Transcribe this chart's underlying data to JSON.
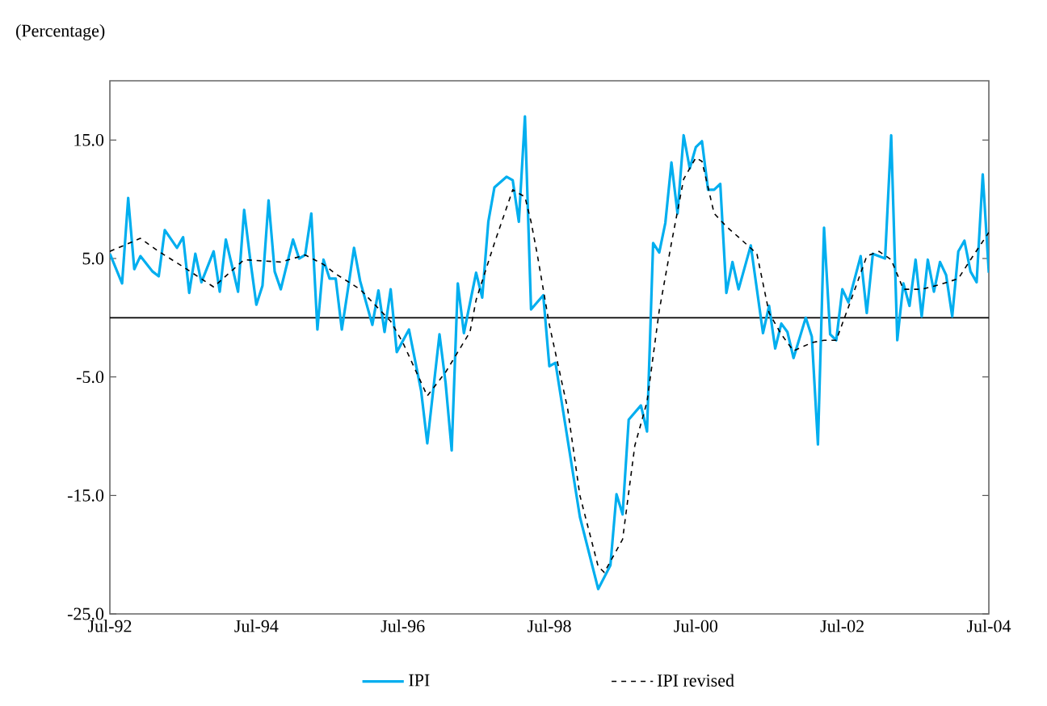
{
  "chart_data": {
    "type": "line",
    "ylabel": "(Percentage)",
    "xlim": [
      "1992-07",
      "2004-07"
    ],
    "xticks": [
      {
        "value": "1992-07",
        "label": "Jul-92"
      },
      {
        "value": "1994-07",
        "label": "Jul-94"
      },
      {
        "value": "1996-07",
        "label": "Jul-96"
      },
      {
        "value": "1998-07",
        "label": "Jul-98"
      },
      {
        "value": "2000-07",
        "label": "Jul-00"
      },
      {
        "value": "2002-07",
        "label": "Jul-02"
      },
      {
        "value": "2004-07",
        "label": "Jul-04"
      }
    ],
    "ylim": [
      -25,
      20
    ],
    "yticks": [
      {
        "value": -25,
        "label": "-25.0"
      },
      {
        "value": -15,
        "label": "-15.0"
      },
      {
        "value": -5,
        "label": "-5.0"
      },
      {
        "value": 5,
        "label": "5.0"
      },
      {
        "value": 15,
        "label": "15.0"
      }
    ],
    "ref_lines": [
      {
        "axis": "y",
        "value": 0,
        "color": "#000000"
      }
    ],
    "grid": false,
    "legend": "bottom",
    "series": [
      {
        "name": "IPI",
        "color": "#00aeef",
        "line_style": "solid",
        "x": [
          "1992-07",
          "1992-09",
          "1992-10",
          "1992-11",
          "1992-12",
          "1993-02",
          "1993-03",
          "1993-04",
          "1993-06",
          "1993-07",
          "1993-08",
          "1993-09",
          "1993-10",
          "1993-12",
          "1994-01",
          "1994-02",
          "1994-04",
          "1994-05",
          "1994-06",
          "1994-07",
          "1994-08",
          "1994-09",
          "1994-10",
          "1994-11",
          "1995-01",
          "1995-02",
          "1995-03",
          "1995-04",
          "1995-05",
          "1995-06",
          "1995-07",
          "1995-08",
          "1995-09",
          "1995-10",
          "1995-11",
          "1995-12",
          "1996-02",
          "1996-03",
          "1996-04",
          "1996-05",
          "1996-06",
          "1996-08",
          "1996-10",
          "1996-11",
          "1997-01",
          "1997-02",
          "1997-03",
          "1997-04",
          "1997-05",
          "1997-07",
          "1997-08",
          "1997-09",
          "1997-10",
          "1997-12",
          "1998-01",
          "1998-02",
          "1998-03",
          "1998-04",
          "1998-06",
          "1998-07",
          "1998-08",
          "1998-12",
          "1999-03",
          "1999-05",
          "1999-06",
          "1999-07",
          "1999-08",
          "1999-10",
          "1999-11",
          "1999-12",
          "2000-01",
          "2000-02",
          "2000-03",
          "2000-04",
          "2000-05",
          "2000-06",
          "2000-07",
          "2000-08",
          "2000-09",
          "2000-10",
          "2000-11",
          "2000-12",
          "2001-01",
          "2001-02",
          "2001-04",
          "2001-06",
          "2001-07",
          "2001-08",
          "2001-09",
          "2001-10",
          "2001-11",
          "2002-01",
          "2002-02",
          "2002-03",
          "2002-04",
          "2002-05",
          "2002-06",
          "2002-07",
          "2002-08",
          "2002-10",
          "2002-11",
          "2002-12",
          "2003-02",
          "2003-03",
          "2003-04",
          "2003-05",
          "2003-06",
          "2003-07",
          "2003-08",
          "2003-09",
          "2003-10",
          "2003-11",
          "2003-12",
          "2004-01",
          "2004-02",
          "2004-03",
          "2004-04",
          "2004-05",
          "2004-06",
          "2004-07"
        ],
        "values": [
          5.4,
          2.9,
          10.1,
          4.1,
          5.2,
          3.9,
          3.5,
          7.4,
          5.9,
          6.8,
          2.1,
          5.4,
          3.0,
          5.6,
          2.2,
          6.6,
          2.2,
          9.1,
          4.9,
          1.1,
          2.7,
          9.9,
          3.9,
          2.4,
          6.6,
          5.0,
          5.3,
          8.8,
          -1.0,
          4.9,
          3.3,
          3.3,
          -1.0,
          2.4,
          5.9,
          3.1,
          -0.6,
          2.3,
          -1.2,
          2.4,
          -2.9,
          -1.0,
          -6.2,
          -10.6,
          -1.4,
          -5.5,
          -11.2,
          2.9,
          -1.3,
          3.8,
          1.7,
          8.1,
          11.0,
          11.9,
          11.6,
          8.1,
          17.0,
          0.7,
          1.9,
          -4.1,
          -3.8,
          -16.8,
          -22.9,
          -20.9,
          -14.9,
          -16.6,
          -8.6,
          -7.4,
          -9.6,
          6.3,
          5.5,
          8.0,
          13.1,
          8.8,
          15.4,
          12.6,
          14.4,
          14.9,
          10.8,
          10.8,
          11.3,
          2.1,
          4.7,
          2.4,
          6.1,
          -1.3,
          1.0,
          -2.6,
          -0.5,
          -1.2,
          -3.4,
          0.0,
          -1.6,
          -10.7,
          7.6,
          -1.4,
          -1.9,
          2.4,
          1.3,
          5.2,
          0.4,
          5.4,
          5.0,
          15.4,
          -1.9,
          2.9,
          1.0,
          4.9,
          0.1,
          4.9,
          2.2,
          4.7,
          3.6,
          0.1,
          5.6,
          6.5,
          3.9,
          3.0,
          12.1,
          3.8
        ]
      },
      {
        "name": "IPI revised",
        "color": "#000000",
        "line_style": "dashed",
        "x": [
          "1992-07",
          "1992-12",
          "1993-03",
          "1993-07",
          "1993-12",
          "1994-05",
          "1994-11",
          "1995-03",
          "1995-06",
          "1995-08",
          "1995-12",
          "1996-05",
          "1996-07",
          "1996-11",
          "1997-02",
          "1997-06",
          "1997-07",
          "1997-10",
          "1998-01",
          "1998-03",
          "1998-04",
          "1998-05",
          "1998-07",
          "1998-10",
          "1998-12",
          "1999-03",
          "1999-04",
          "1999-07",
          "1999-09",
          "1999-11",
          "2000-01",
          "2000-03",
          "2000-05",
          "2000-07",
          "2000-08",
          "2000-10",
          "2000-12",
          "2001-02",
          "2001-05",
          "2001-07",
          "2001-09",
          "2001-11",
          "2002-02",
          "2002-04",
          "2002-06",
          "2002-08",
          "2002-11",
          "2003-01",
          "2003-03",
          "2003-05",
          "2003-08",
          "2003-11",
          "2004-02",
          "2004-04",
          "2004-07"
        ],
        "values": [
          5.6,
          6.7,
          5.6,
          4.3,
          2.6,
          4.9,
          4.7,
          5.3,
          4.5,
          3.7,
          2.4,
          -0.3,
          -2.1,
          -6.6,
          -4.6,
          -1.2,
          1.5,
          6.3,
          10.8,
          10.2,
          8.1,
          5.4,
          -0.6,
          -7.7,
          -15.0,
          -21.0,
          -21.5,
          -18.7,
          -10.8,
          -7.1,
          0.6,
          6.3,
          11.7,
          13.5,
          13.2,
          8.8,
          7.7,
          6.8,
          5.4,
          0.4,
          -1.4,
          -2.8,
          -2.1,
          -1.9,
          -1.9,
          0.9,
          5.2,
          5.6,
          4.9,
          2.4,
          2.4,
          2.8,
          3.3,
          4.9,
          7.2
        ]
      }
    ]
  }
}
